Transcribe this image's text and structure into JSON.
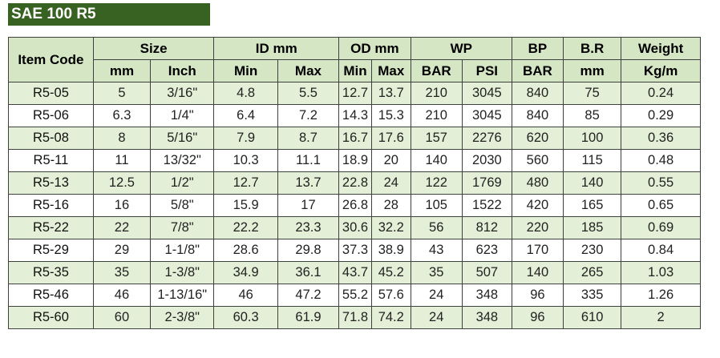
{
  "title": "SAE 100 R5",
  "header": {
    "item_code": "Item Code",
    "size": "Size",
    "id_mm": "ID mm",
    "od_mm": "OD mm",
    "wp": "WP",
    "bp": "BP",
    "br": "B.R",
    "weight": "Weight",
    "size_mm": "mm",
    "size_inch": "Inch",
    "id_min": "Min",
    "id_max": "Max",
    "od_min": "Min",
    "od_max": "Max",
    "wp_bar": "BAR",
    "wp_psi": "PSI",
    "bp_bar": "BAR",
    "br_mm": "mm",
    "weight_unit": "Kg/m"
  },
  "rows": [
    [
      "R5-05",
      "5",
      "3/16\"",
      "4.8",
      "5.5",
      "12.7",
      "13.7",
      "210",
      "3045",
      "840",
      "75",
      "0.24"
    ],
    [
      "R5-06",
      "6.3",
      "1/4\"",
      "6.4",
      "7.2",
      "14.3",
      "15.3",
      "210",
      "3045",
      "840",
      "85",
      "0.29"
    ],
    [
      "R5-08",
      "8",
      "5/16\"",
      "7.9",
      "8.7",
      "16.7",
      "17.6",
      "157",
      "2276",
      "620",
      "100",
      "0.36"
    ],
    [
      "R5-11",
      "11",
      "13/32\"",
      "10.3",
      "11.1",
      "18.9",
      "20",
      "140",
      "2030",
      "560",
      "115",
      "0.48"
    ],
    [
      "R5-13",
      "12.5",
      "1/2\"",
      "12.7",
      "13.7",
      "22.8",
      "24",
      "122",
      "1769",
      "480",
      "140",
      "0.55"
    ],
    [
      "R5-16",
      "16",
      "5/8\"",
      "15.9",
      "17",
      "26.8",
      "28",
      "105",
      "1522",
      "420",
      "165",
      "0.65"
    ],
    [
      "R5-22",
      "22",
      "7/8\"",
      "22.2",
      "23.3",
      "30.6",
      "32.2",
      "56",
      "812",
      "220",
      "185",
      "0.69"
    ],
    [
      "R5-29",
      "29",
      "1-1/8\"",
      "28.6",
      "29.8",
      "37.3",
      "38.9",
      "43",
      "623",
      "170",
      "230",
      "0.84"
    ],
    [
      "R5-35",
      "35",
      "1-3/8\"",
      "34.9",
      "36.1",
      "43.7",
      "45.2",
      "35",
      "507",
      "140",
      "265",
      "1.03"
    ],
    [
      "R5-46",
      "46",
      "1-13/16\"",
      "46",
      "47.2",
      "55.2",
      "57.6",
      "24",
      "348",
      "96",
      "335",
      "1.26"
    ],
    [
      "R5-60",
      "60",
      "2-3/8\"",
      "60.3",
      "61.9",
      "71.8",
      "74.2",
      "24",
      "348",
      "96",
      "610",
      "2"
    ]
  ]
}
